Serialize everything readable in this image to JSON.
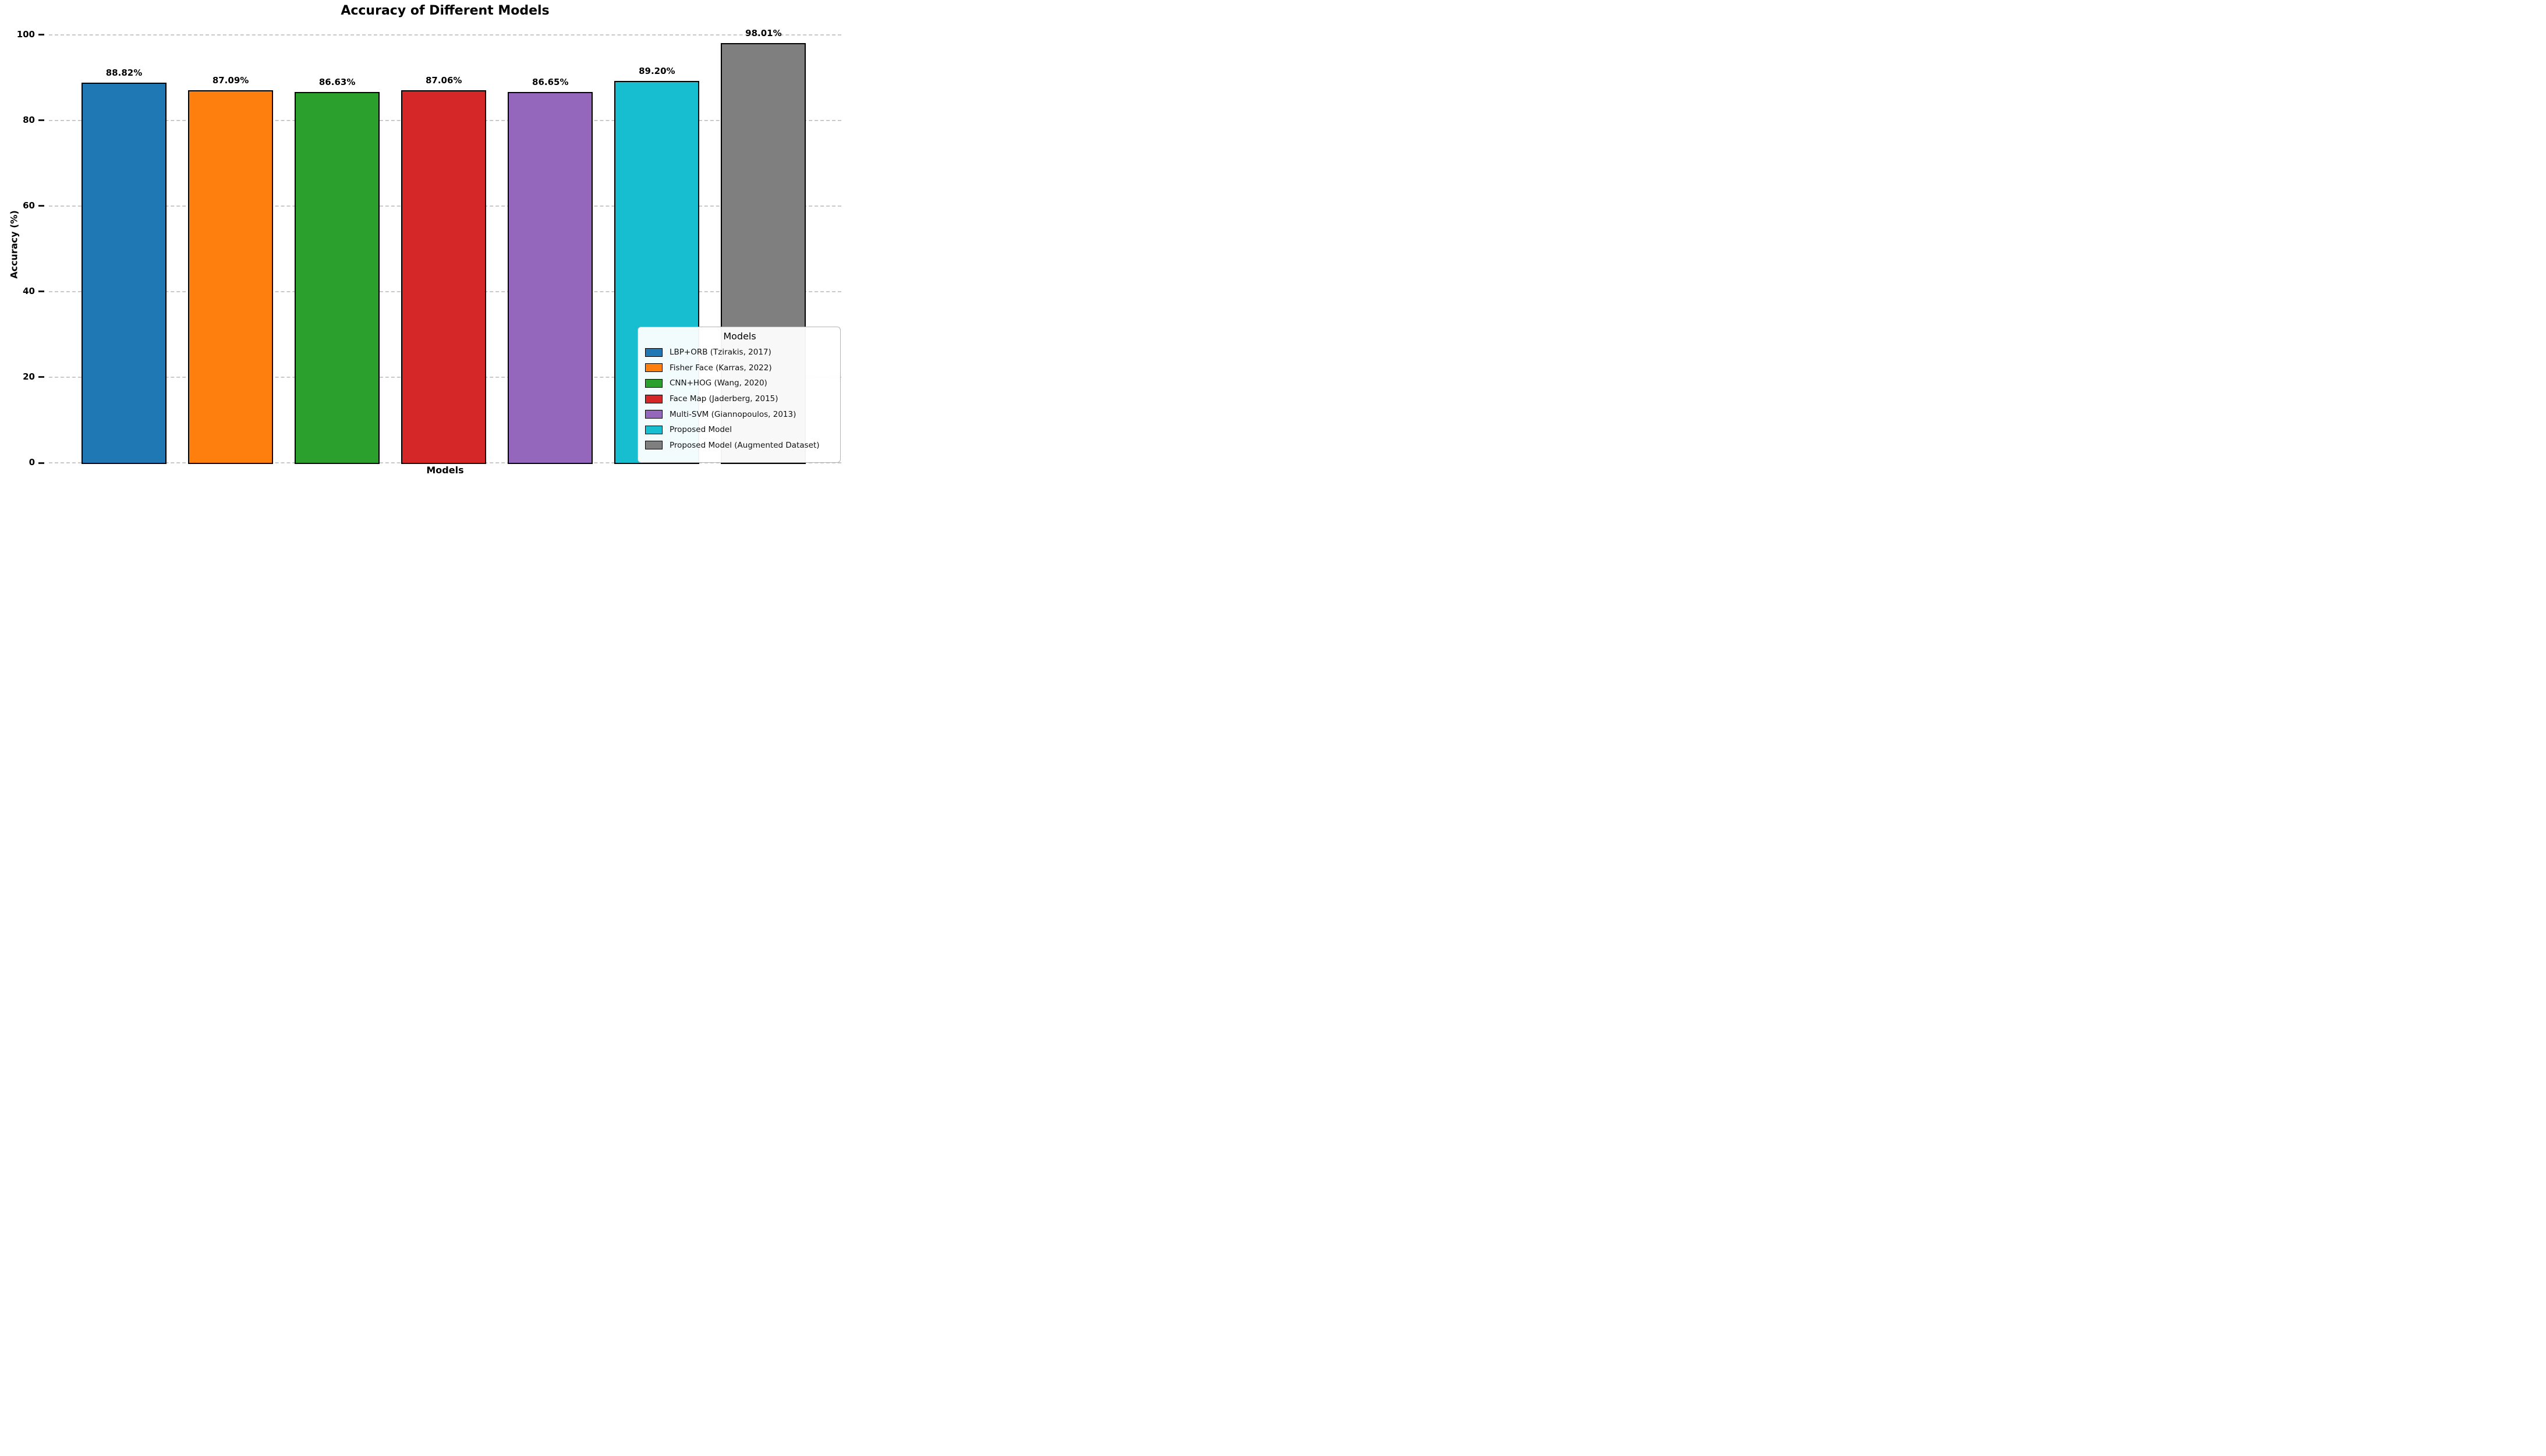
{
  "chart_data": {
    "type": "bar",
    "title": "Accuracy of Different Models",
    "xlabel": "Models",
    "ylabel": "Accuracy (%)",
    "ylim": [
      0,
      100
    ],
    "yticks": [
      0,
      20,
      40,
      60,
      80,
      100
    ],
    "grid": "horizontal-dashed",
    "background_color": "#ffffff",
    "gridline_color": "#c9c9c9",
    "bar_edge_color": "#000000",
    "categories": [
      "LBP+ORB (Tzirakis, 2017)",
      "Fisher Face (Karras, 2022)",
      "CNN+HOG (Wang, 2020)",
      "Face Map (Jaderberg, 2015)",
      "Multi-SVM (Giannopoulos, 2013)",
      "Proposed Model",
      "Proposed Model (Augmented Dataset)"
    ],
    "values": [
      88.82,
      87.09,
      86.63,
      87.06,
      86.65,
      89.2,
      98.01
    ],
    "value_labels": [
      "88.82%",
      "87.09%",
      "86.63%",
      "87.06%",
      "86.65%",
      "89.20%",
      "98.01%"
    ],
    "bar_colors": [
      "#1f77b4",
      "#ff7f0e",
      "#2ca02c",
      "#d62728",
      "#9467bd",
      "#17becf",
      "#7f7f7f"
    ],
    "legend": {
      "title": "Models",
      "position": "lower right"
    }
  }
}
